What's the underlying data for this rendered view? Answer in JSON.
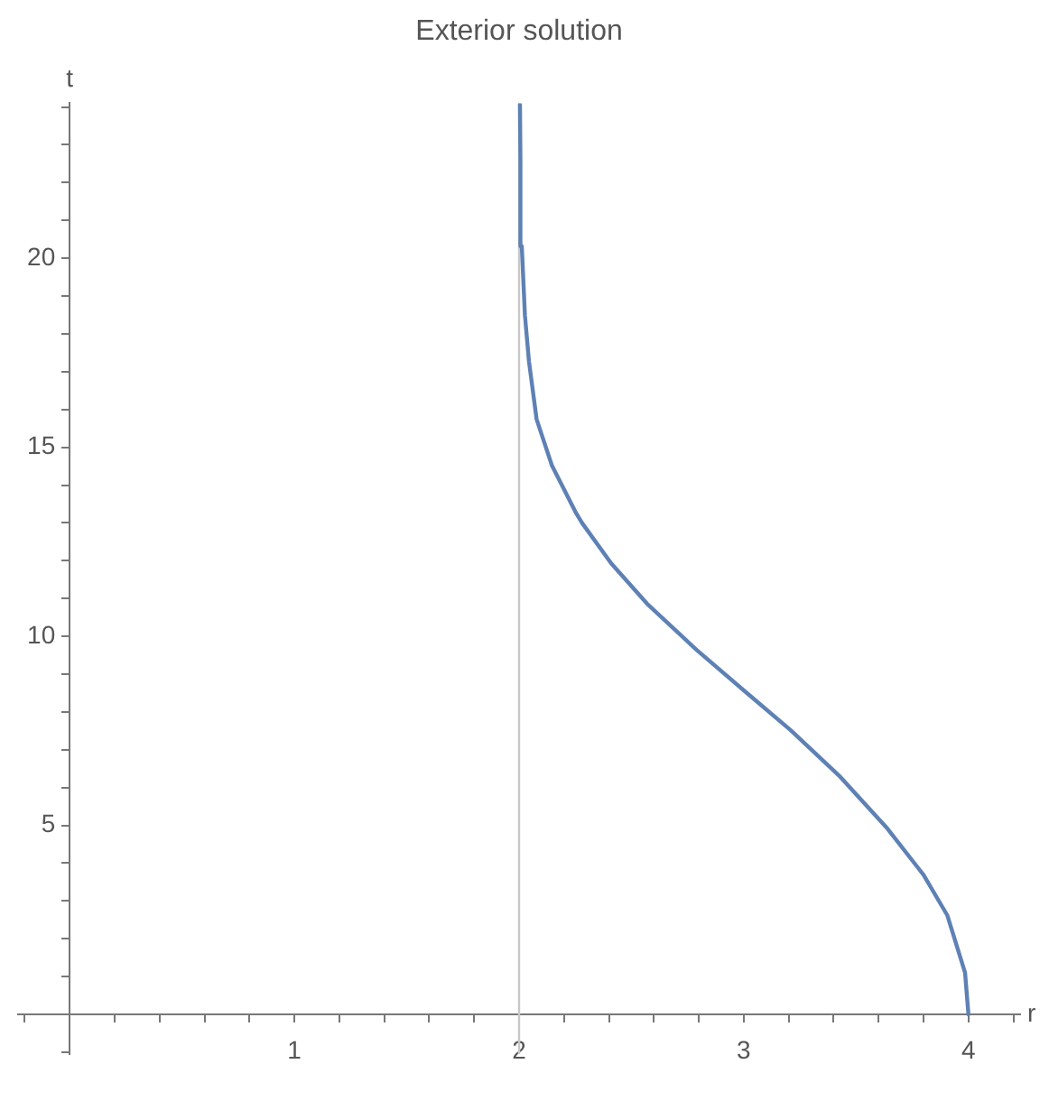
{
  "chart_data": {
    "type": "line",
    "title": "Exterior solution",
    "xlabel": "r",
    "ylabel": "t",
    "x": [
      4,
      3.985,
      3.906,
      3.8,
      3.64,
      3.43,
      3.21,
      3.0,
      2.79,
      2.57,
      2.41,
      2.28,
      2.25,
      2.146,
      2.078,
      2.044,
      2.026,
      2.012,
      2.006,
      2.004
    ],
    "series": [
      {
        "color": "#5e81b5",
        "values": [
          0,
          1.1,
          2.62,
          3.69,
          4.91,
          6.28,
          7.51,
          8.57,
          9.64,
          10.86,
          11.93,
          13.0,
          13.3,
          14.52,
          15.74,
          17.27,
          18.49,
          20.32,
          22.6,
          24.07
        ]
      }
    ],
    "xlim": [
      -0.23,
      4.23
    ],
    "ylim": [
      -1.05,
      24.1
    ],
    "xticks": [
      {
        "value": -0.2,
        "label": null
      },
      {
        "value": 0,
        "label": null
      },
      {
        "value": 0.2,
        "label": null
      },
      {
        "value": 0.4,
        "label": null
      },
      {
        "value": 0.6,
        "label": null
      },
      {
        "value": 0.8,
        "label": null
      },
      1,
      {
        "value": 1.2,
        "label": null
      },
      {
        "value": 1.4,
        "label": null
      },
      {
        "value": 1.6,
        "label": null
      },
      {
        "value": 1.8,
        "label": null
      },
      2,
      {
        "value": 2.2,
        "label": null
      },
      {
        "value": 2.4,
        "label": null
      },
      {
        "value": 2.6,
        "label": null
      },
      {
        "value": 2.8,
        "label": null
      },
      3,
      {
        "value": 3.2,
        "label": null
      },
      {
        "value": 3.4,
        "label": null
      },
      {
        "value": 3.6,
        "label": null
      },
      {
        "value": 3.8,
        "label": null
      },
      4,
      {
        "value": 4.2,
        "label": null
      }
    ],
    "yticks": [
      {
        "value": -1,
        "label": null
      },
      {
        "value": 0,
        "label": null
      },
      {
        "value": 1,
        "label": null
      },
      {
        "value": 2,
        "label": null
      },
      {
        "value": 3,
        "label": null
      },
      {
        "value": 4,
        "label": null
      },
      5,
      {
        "value": 6,
        "label": null
      },
      {
        "value": 7,
        "label": null
      },
      {
        "value": 8,
        "label": null
      },
      {
        "value": 9,
        "label": null
      },
      10,
      {
        "value": 11,
        "label": null
      },
      {
        "value": 12,
        "label": null
      },
      {
        "value": 13,
        "label": null
      },
      {
        "value": 14,
        "label": null
      },
      15,
      {
        "value": 16,
        "label": null
      },
      {
        "value": 17,
        "label": null
      },
      {
        "value": 18,
        "label": null
      },
      {
        "value": 19,
        "label": null
      },
      20,
      {
        "value": 21,
        "label": null
      },
      {
        "value": 22,
        "label": null
      },
      {
        "value": 23,
        "label": null
      },
      {
        "value": 24,
        "label": null
      }
    ],
    "ref_lines": [
      {
        "axis": "x",
        "value": 2,
        "color": "#c8c8c8"
      }
    ],
    "grid": false,
    "legend": false,
    "marker": "none",
    "line_style": "solid"
  }
}
